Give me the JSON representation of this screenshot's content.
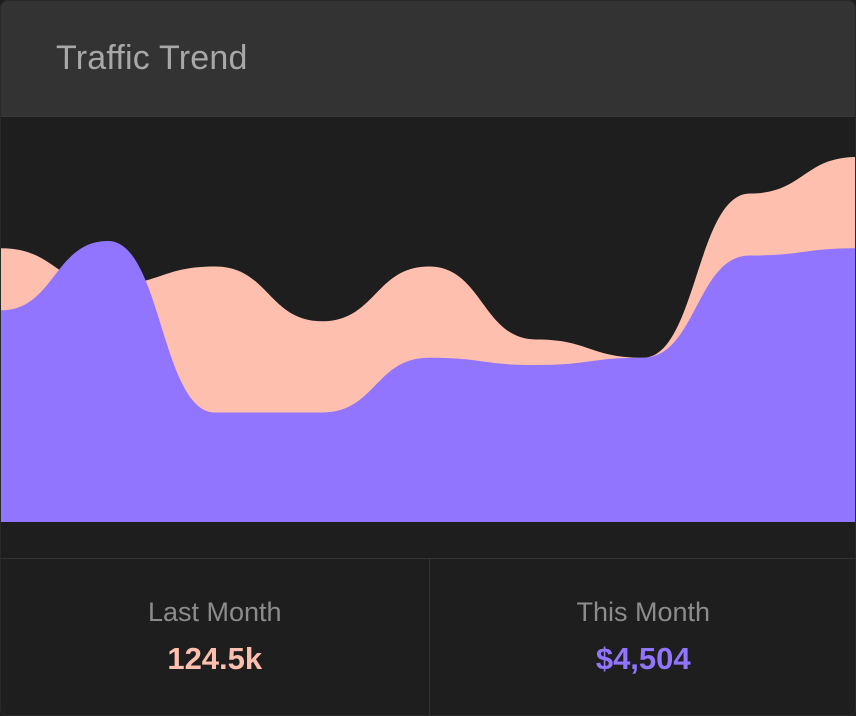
{
  "widget": {
    "title": "Traffic Trend"
  },
  "stats": {
    "last_month": {
      "label": "Last Month",
      "value": "124.5k"
    },
    "this_month": {
      "label": "This Month",
      "value": "$4,504"
    }
  },
  "colors": {
    "last_month": "#ffbfae",
    "this_month": "#9275ff",
    "background": "#1e1e1e",
    "header": "#333333"
  },
  "chart_data": {
    "type": "area",
    "title": "",
    "xlabel": "",
    "ylabel": "",
    "ylim": [
      0,
      100
    ],
    "grid": false,
    "legend": "none",
    "x": [
      0,
      1,
      2,
      3,
      4,
      5,
      6,
      7,
      8
    ],
    "series": [
      {
        "color": "#ffbfae",
        "values": [
          75,
          65,
          70,
          55,
          70,
          50,
          45,
          90,
          100
        ]
      },
      {
        "color": "#9275ff",
        "values": [
          58,
          77,
          30,
          30,
          45,
          43,
          45,
          73,
          75
        ]
      }
    ]
  }
}
